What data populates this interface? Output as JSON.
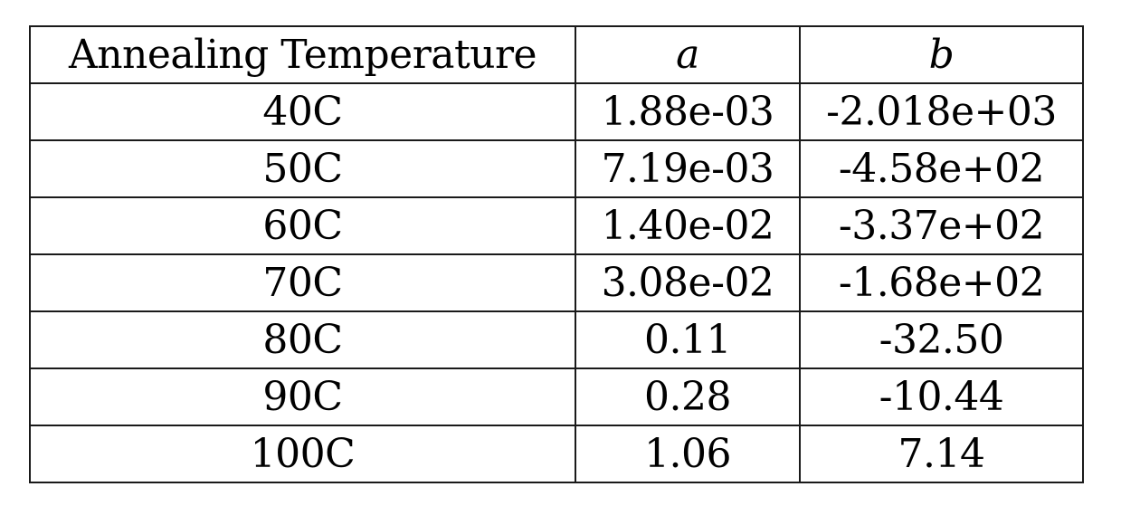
{
  "table": {
    "headers": [
      "Annealing Temperature",
      "a",
      "b"
    ],
    "rows": [
      [
        "40C",
        "1.88e-03",
        "-2.018e+03"
      ],
      [
        "50C",
        "7.19e-03",
        "-4.58e+02"
      ],
      [
        "60C",
        "1.40e-02",
        "-3.37e+02"
      ],
      [
        "70C",
        "3.08e-02",
        "-1.68e+02"
      ],
      [
        "80C",
        "0.11",
        "-32.50"
      ],
      [
        "90C",
        "0.28",
        "-10.44"
      ],
      [
        "100C",
        "1.06",
        "7.14"
      ]
    ]
  }
}
